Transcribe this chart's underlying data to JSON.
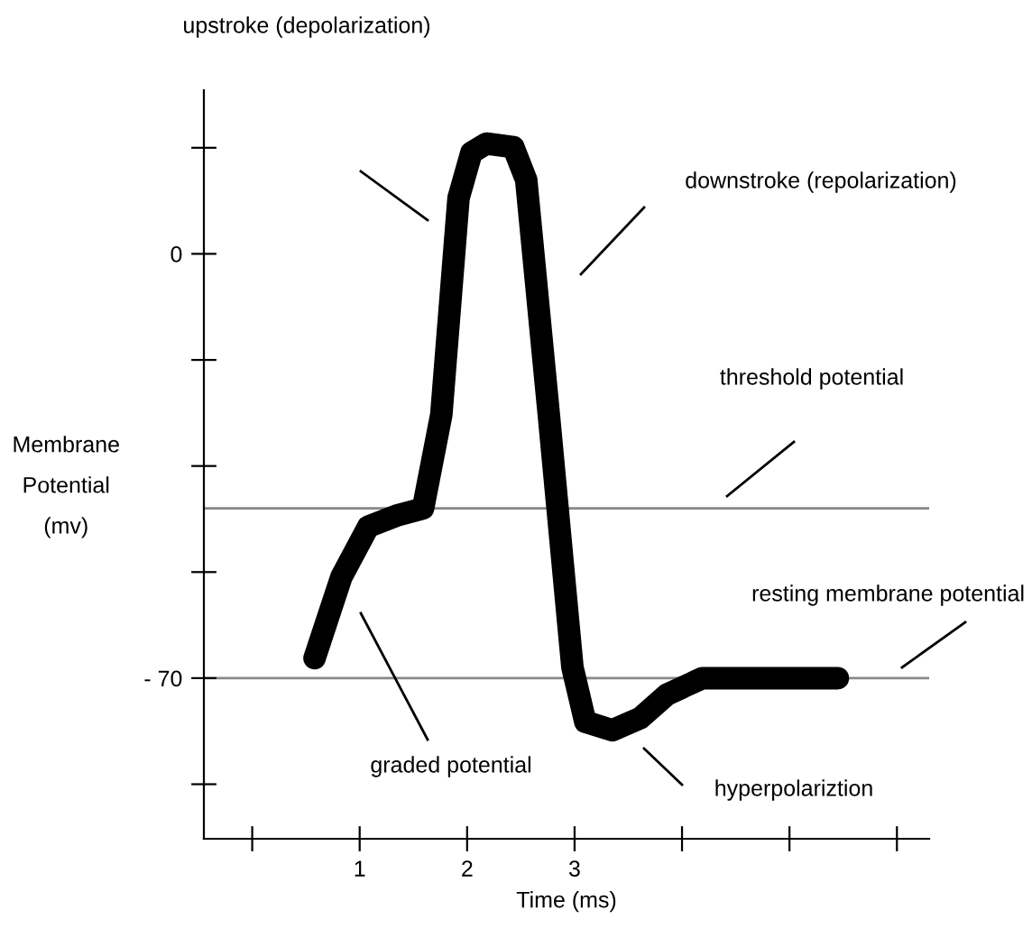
{
  "chart_data": {
    "type": "line",
    "xlabel": "Time (ms)",
    "ylabel": "Membrane Potential (mv)",
    "x": [
      0.58,
      0.83,
      1.08,
      1.34,
      1.59,
      1.76,
      1.92,
      2.04,
      2.18,
      2.43,
      2.55,
      2.76,
      2.98,
      3.1,
      3.35,
      3.61,
      3.86,
      4.19,
      4.7,
      5.45
    ],
    "series": [
      {
        "color": "#000000",
        "values": [
          -66.7,
          -53.3,
          -45.0,
          -43.2,
          -42.0,
          -26.5,
          9.2,
          16.7,
          18.2,
          17.6,
          12.2,
          -26.5,
          -68.2,
          -77.2,
          -78.6,
          -76.6,
          -72.7,
          -70,
          -70,
          -70
        ]
      }
    ],
    "xlim": [
      -0.45,
      6.3
    ],
    "ylim": [
      -96.5,
      27
    ],
    "xticks": [
      {
        "value": 0,
        "label": null
      },
      1,
      2,
      3,
      {
        "value": 4,
        "label": null
      },
      {
        "value": 5,
        "label": null
      },
      {
        "value": 6,
        "label": null
      }
    ],
    "yticks": [
      {
        "value": 17.5,
        "label": null
      },
      0,
      {
        "value": -17.5,
        "label": null
      },
      {
        "value": -35,
        "label": null
      },
      {
        "value": -52.5,
        "label": null
      },
      {
        "value": -70,
        "label": "- 70"
      },
      {
        "value": -87.5,
        "label": null
      }
    ],
    "ref_lines": [
      {
        "axis": "y",
        "value": -42,
        "color": "#888888"
      },
      {
        "axis": "y",
        "value": -70,
        "color": "#888888"
      }
    ],
    "annotations": [
      "upstroke (depolarization)",
      "downstroke (repolarization)",
      "threshold potential",
      "resting membrane potential",
      "graded potential",
      "hyperpolariztion"
    ],
    "grid": false,
    "legend": false,
    "line_style": "solid"
  }
}
